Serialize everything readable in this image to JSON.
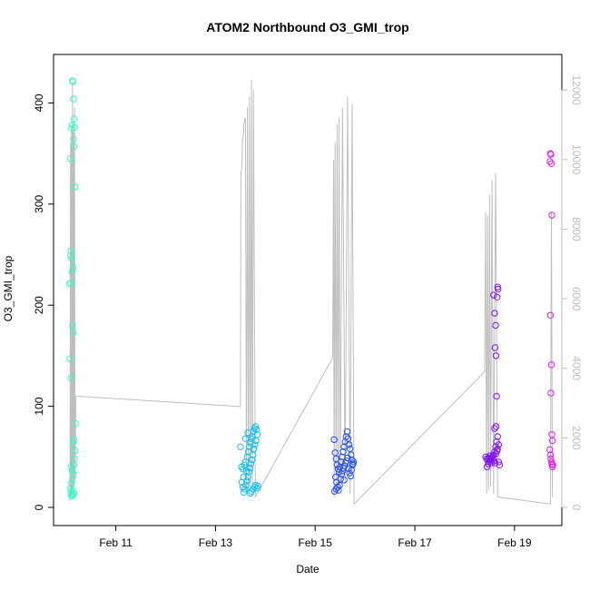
{
  "chart_data": {
    "type": "scatter",
    "title": "ATOM2 Northbound O3_GMI_trop",
    "xlabel": "Date",
    "ylabel": "O3_GMI_trop",
    "x_tick_labels": [
      "Feb 11",
      "Feb 13",
      "Feb 15",
      "Feb 17",
      "Feb 19"
    ],
    "x_tick_values": [
      11,
      13,
      15,
      17,
      19
    ],
    "xlim": [
      9.75,
      19.95
    ],
    "ylim": [
      0,
      430
    ],
    "y_ticks": [
      0,
      100,
      200,
      300,
      400
    ],
    "y2_ticks": [
      0,
      2000,
      4000,
      6000,
      8000,
      10000,
      12000
    ],
    "y2lim": [
      0,
      12500
    ],
    "grid": false,
    "colors": {
      "flight1": "#3cf5c8",
      "flight2": "#14bef0",
      "flight3": "#2850f0",
      "flight4": "#8214f0",
      "flight5": "#e11ee6",
      "altitude_line": "#bebebe"
    },
    "series": [
      {
        "points": [
          [
            10.13,
            422
          ],
          [
            10.14,
            421
          ],
          [
            10.15,
            404
          ],
          [
            10.12,
            378
          ],
          [
            10.11,
            375
          ],
          [
            10.16,
            384
          ],
          [
            10.17,
            376
          ],
          [
            10.15,
            364
          ],
          [
            10.16,
            357
          ],
          [
            10.09,
            345
          ],
          [
            10.18,
            317
          ],
          [
            10.1,
            254
          ],
          [
            10.09,
            249
          ],
          [
            10.11,
            246
          ],
          [
            10.14,
            237
          ],
          [
            10.12,
            233
          ],
          [
            10.07,
            221
          ],
          [
            10.1,
            222
          ],
          [
            10.13,
            180
          ],
          [
            10.15,
            173
          ],
          [
            10.08,
            147
          ],
          [
            10.1,
            128
          ],
          [
            10.19,
            83
          ],
          [
            10.16,
            67
          ],
          [
            10.14,
            63
          ],
          [
            10.18,
            56
          ],
          [
            10.17,
            48
          ],
          [
            10.16,
            42
          ],
          [
            10.1,
            40
          ],
          [
            10.12,
            36
          ],
          [
            10.15,
            33
          ],
          [
            10.13,
            28
          ],
          [
            10.11,
            24
          ],
          [
            10.09,
            19
          ],
          [
            10.1,
            15
          ],
          [
            10.12,
            13
          ],
          [
            10.14,
            12
          ],
          [
            10.16,
            14
          ],
          [
            10.11,
            11
          ],
          [
            10.13,
            17
          ]
        ]
      },
      {
        "points": [
          [
            13.52,
            40
          ],
          [
            13.55,
            38
          ],
          [
            13.58,
            42
          ],
          [
            13.6,
            45
          ],
          [
            13.62,
            36
          ],
          [
            13.64,
            50
          ],
          [
            13.66,
            55
          ],
          [
            13.68,
            60
          ],
          [
            13.7,
            64
          ],
          [
            13.72,
            68
          ],
          [
            13.74,
            70
          ],
          [
            13.76,
            75
          ],
          [
            13.78,
            78
          ],
          [
            13.8,
            80
          ],
          [
            13.82,
            77
          ],
          [
            13.84,
            72
          ],
          [
            13.81,
            66
          ],
          [
            13.79,
            62
          ],
          [
            13.77,
            58
          ],
          [
            13.75,
            52
          ],
          [
            13.73,
            47
          ],
          [
            13.71,
            43
          ],
          [
            13.69,
            39
          ],
          [
            13.67,
            35
          ],
          [
            13.65,
            30
          ],
          [
            13.63,
            26
          ],
          [
            13.61,
            22
          ],
          [
            13.59,
            18
          ],
          [
            13.57,
            15
          ],
          [
            13.55,
            20
          ],
          [
            13.53,
            25
          ],
          [
            13.56,
            30
          ],
          [
            13.7,
            14
          ],
          [
            13.72,
            16
          ],
          [
            13.75,
            18
          ],
          [
            13.78,
            20
          ],
          [
            13.8,
            22
          ],
          [
            13.83,
            19
          ],
          [
            13.85,
            21
          ],
          [
            13.5,
            60
          ],
          [
            13.6,
            68
          ],
          [
            13.65,
            74
          ]
        ]
      },
      {
        "points": [
          [
            15.38,
            67
          ],
          [
            15.4,
            54
          ],
          [
            15.42,
            48
          ],
          [
            15.44,
            42
          ],
          [
            15.46,
            38
          ],
          [
            15.48,
            35
          ],
          [
            15.5,
            40
          ],
          [
            15.52,
            45
          ],
          [
            15.54,
            50
          ],
          [
            15.56,
            55
          ],
          [
            15.58,
            60
          ],
          [
            15.6,
            65
          ],
          [
            15.62,
            70
          ],
          [
            15.64,
            75
          ],
          [
            15.66,
            68
          ],
          [
            15.68,
            62
          ],
          [
            15.7,
            58
          ],
          [
            15.72,
            52
          ],
          [
            15.74,
            47
          ],
          [
            15.76,
            43
          ],
          [
            15.41,
            30
          ],
          [
            15.43,
            25
          ],
          [
            15.45,
            20
          ],
          [
            15.47,
            17
          ],
          [
            15.49,
            22
          ],
          [
            15.51,
            28
          ],
          [
            15.53,
            33
          ],
          [
            15.55,
            36
          ],
          [
            15.57,
            39
          ],
          [
            15.59,
            41
          ],
          [
            15.61,
            44
          ],
          [
            15.63,
            46
          ],
          [
            15.65,
            49
          ],
          [
            15.67,
            38
          ],
          [
            15.69,
            34
          ],
          [
            15.71,
            31
          ],
          [
            15.73,
            37
          ],
          [
            15.75,
            42
          ],
          [
            15.77,
            45
          ],
          [
            15.39,
            16
          ],
          [
            15.42,
            18
          ],
          [
            15.58,
            27
          ]
        ]
      },
      {
        "points": [
          [
            18.42,
            50
          ],
          [
            18.44,
            48
          ],
          [
            18.46,
            47
          ],
          [
            18.48,
            49
          ],
          [
            18.5,
            51
          ],
          [
            18.52,
            46
          ],
          [
            18.54,
            44
          ],
          [
            18.56,
            48
          ],
          [
            18.58,
            52
          ],
          [
            18.6,
            55
          ],
          [
            18.62,
            60
          ],
          [
            18.64,
            65
          ],
          [
            18.66,
            70
          ],
          [
            18.68,
            45
          ],
          [
            18.7,
            42
          ],
          [
            18.45,
            40
          ],
          [
            18.47,
            43
          ],
          [
            18.49,
            45
          ],
          [
            18.51,
            47
          ],
          [
            18.53,
            49
          ],
          [
            18.55,
            50
          ],
          [
            18.57,
            51
          ],
          [
            18.59,
            46
          ],
          [
            18.61,
            44
          ],
          [
            18.63,
            53
          ],
          [
            18.65,
            56
          ],
          [
            18.6,
            192
          ],
          [
            18.62,
            180
          ],
          [
            18.61,
            158
          ],
          [
            18.63,
            150
          ],
          [
            18.64,
            110
          ],
          [
            18.6,
            78
          ],
          [
            18.66,
            218
          ],
          [
            18.67,
            216
          ],
          [
            18.65,
            208
          ],
          [
            18.58,
            210
          ],
          [
            18.63,
            80
          ],
          [
            18.68,
            62
          ],
          [
            18.66,
            58
          ]
        ]
      },
      {
        "points": [
          [
            19.72,
            350
          ],
          [
            19.73,
            349
          ],
          [
            19.71,
            342
          ],
          [
            19.74,
            340
          ],
          [
            19.75,
            289
          ],
          [
            19.72,
            190
          ],
          [
            19.74,
            141
          ],
          [
            19.73,
            113
          ],
          [
            19.75,
            72
          ],
          [
            19.76,
            66
          ],
          [
            19.71,
            57
          ],
          [
            19.72,
            52
          ],
          [
            19.73,
            48
          ],
          [
            19.74,
            45
          ],
          [
            19.75,
            43
          ],
          [
            19.76,
            40
          ],
          [
            19.77,
            42
          ]
        ]
      }
    ],
    "altitude_line": [
      [
        10.08,
        200
      ],
      [
        10.09,
        10500
      ],
      [
        10.1,
        300
      ],
      [
        10.11,
        11000
      ],
      [
        10.12,
        400
      ],
      [
        10.13,
        12200
      ],
      [
        10.14,
        500
      ],
      [
        10.15,
        10800
      ],
      [
        10.16,
        600
      ],
      [
        10.17,
        11500
      ],
      [
        10.18,
        800
      ],
      [
        10.2,
        3200
      ],
      [
        13.5,
        2900
      ],
      [
        13.51,
        9600
      ],
      [
        13.53,
        9800
      ],
      [
        13.54,
        10600
      ],
      [
        13.56,
        10700
      ],
      [
        13.57,
        11000
      ],
      [
        13.58,
        11100
      ],
      [
        13.6,
        11200
      ],
      [
        13.62,
        400
      ],
      [
        13.64,
        11500
      ],
      [
        13.66,
        500
      ],
      [
        13.68,
        11800
      ],
      [
        13.7,
        600
      ],
      [
        13.72,
        12300
      ],
      [
        13.74,
        700
      ],
      [
        13.76,
        12000
      ],
      [
        13.8,
        300
      ],
      [
        15.35,
        4300
      ],
      [
        15.37,
        10000
      ],
      [
        15.38,
        300
      ],
      [
        15.4,
        10500
      ],
      [
        15.42,
        400
      ],
      [
        15.44,
        11000
      ],
      [
        15.46,
        500
      ],
      [
        15.48,
        11200
      ],
      [
        15.5,
        600
      ],
      [
        15.55,
        11500
      ],
      [
        15.6,
        700
      ],
      [
        15.65,
        11800
      ],
      [
        15.7,
        400
      ],
      [
        15.74,
        11600
      ],
      [
        15.78,
        100
      ],
      [
        18.4,
        3900
      ],
      [
        18.42,
        8500
      ],
      [
        18.44,
        400
      ],
      [
        18.46,
        8400
      ],
      [
        18.48,
        500
      ],
      [
        18.5,
        9000
      ],
      [
        18.52,
        600
      ],
      [
        18.55,
        9400
      ],
      [
        18.58,
        400
      ],
      [
        18.62,
        9600
      ],
      [
        18.66,
        300
      ],
      [
        19.72,
        100
      ],
      [
        19.74,
        8500
      ],
      [
        19.76,
        300
      ]
    ]
  }
}
